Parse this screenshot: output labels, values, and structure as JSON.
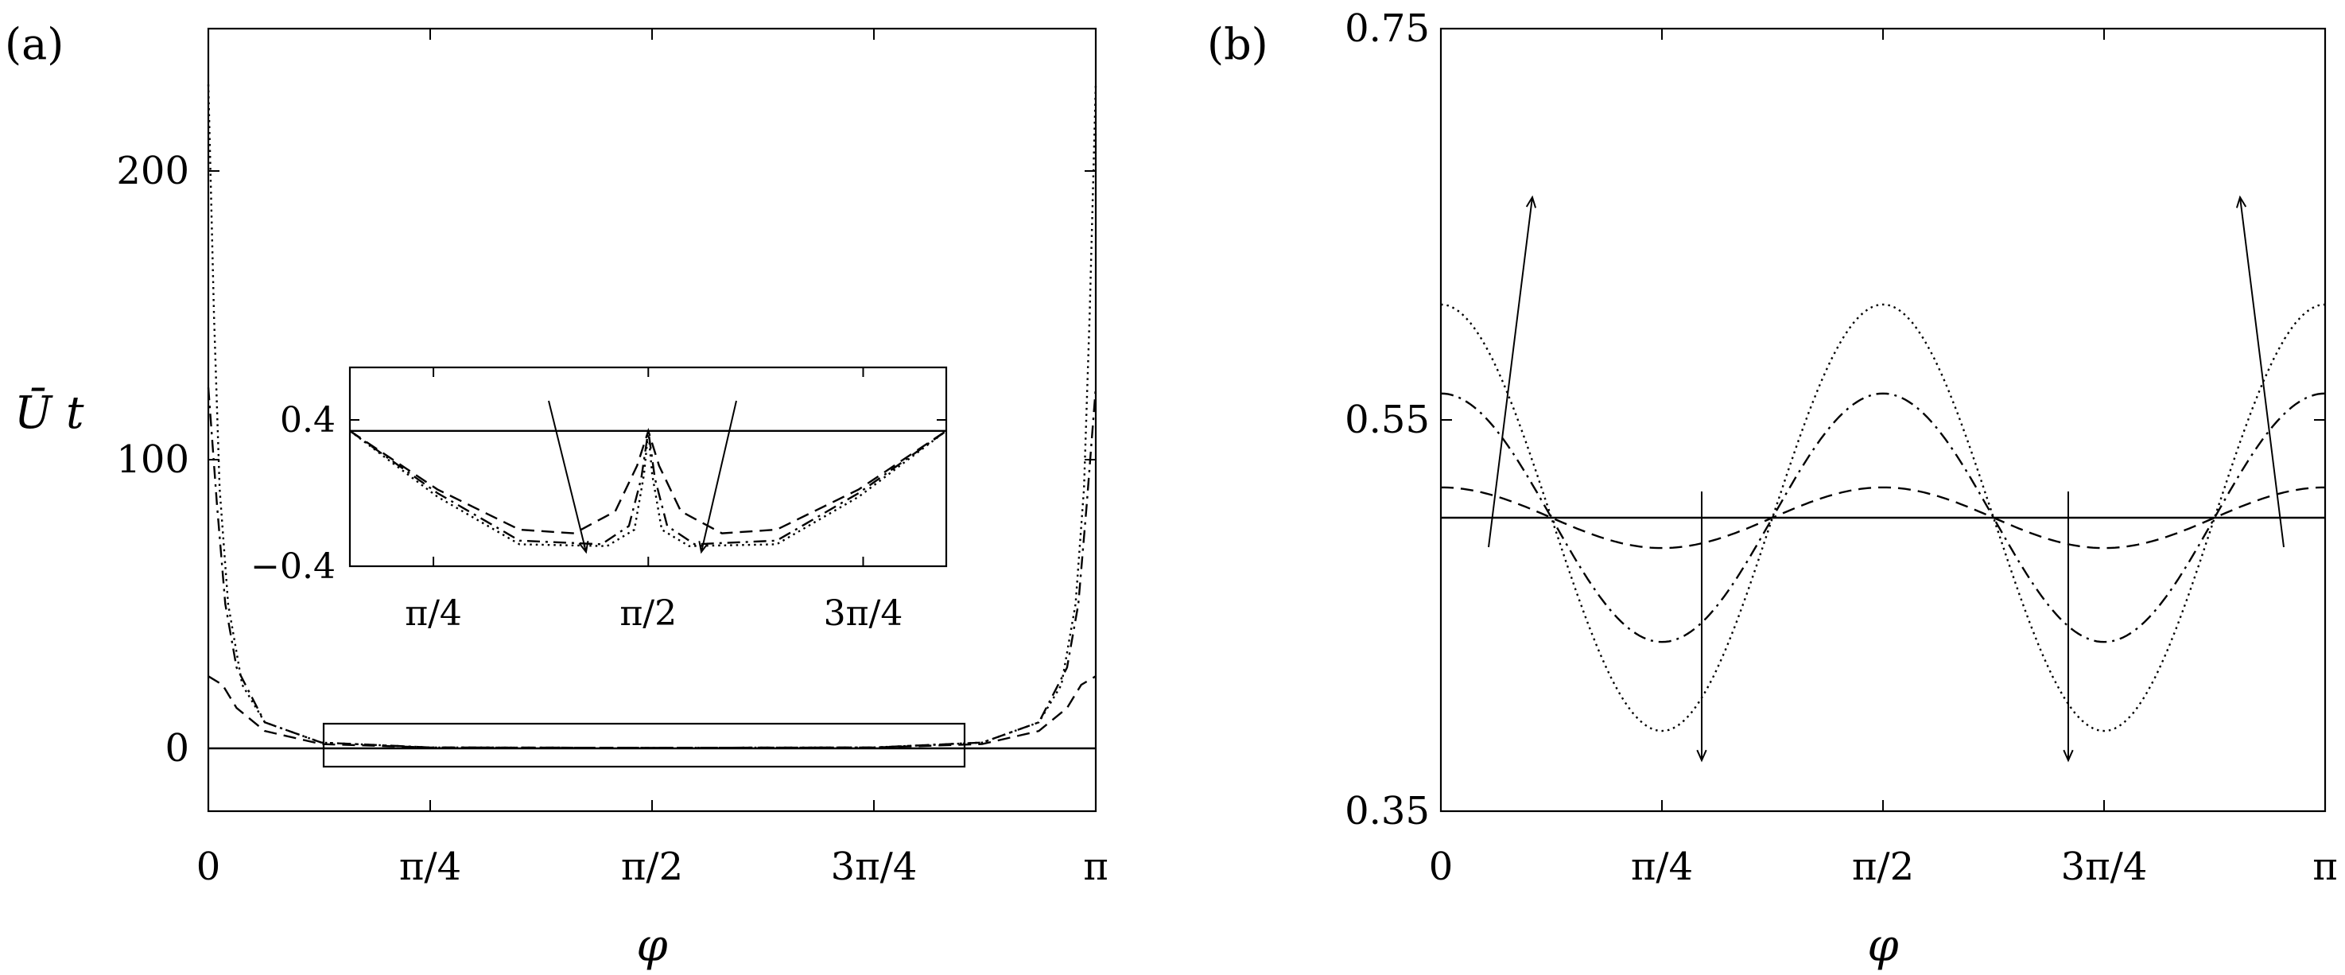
{
  "chart_data": [
    {
      "panel_label": "(a)",
      "type": "line",
      "xlabel": "φ",
      "ylabel": "Ū t",
      "xlim": [
        0,
        3.14159
      ],
      "ylim": [
        -20,
        250
      ],
      "xticks": [
        "0",
        "π/4",
        "π/2",
        "3π/4",
        "π"
      ],
      "yticks": [
        "0",
        "100",
        "200"
      ],
      "series": [
        {
          "style": "solid",
          "x": [
            0,
            0.7854,
            1.5708,
            2.3562,
            3.14159
          ],
          "values": [
            0,
            0,
            0,
            0,
            0
          ]
        },
        {
          "style": "dashed",
          "x": [
            0,
            0.05,
            0.1,
            0.2,
            0.4,
            0.7854,
            1.5708,
            2.3562,
            2.74,
            2.94,
            3.04,
            3.09,
            3.14159
          ],
          "values": [
            25,
            22,
            14,
            6,
            1.5,
            0.3,
            0.2,
            0.3,
            1.5,
            6,
            14,
            22,
            25
          ]
        },
        {
          "style": "dashdot",
          "x": [
            0,
            0.03,
            0.06,
            0.1,
            0.2,
            0.4,
            0.7854,
            1.5708,
            2.3562,
            2.74,
            2.94,
            3.04,
            3.08,
            3.11,
            3.14159
          ],
          "values": [
            125,
            85,
            50,
            28,
            9,
            2,
            0.3,
            0.2,
            0.3,
            2,
            9,
            28,
            50,
            85,
            125
          ]
        },
        {
          "style": "dotted",
          "x": [
            0,
            0.02,
            0.04,
            0.07,
            0.12,
            0.2,
            0.4,
            0.7854,
            1.5708,
            2.3562,
            2.74,
            2.94,
            3.02,
            3.07,
            3.1,
            3.12,
            3.14159
          ],
          "values": [
            230,
            150,
            90,
            50,
            22,
            9,
            2,
            0.3,
            0.2,
            0.3,
            2,
            9,
            22,
            50,
            90,
            150,
            230
          ]
        }
      ],
      "inset": {
        "xlim": [
          0.48,
          2.66
        ],
        "ylim": [
          -0.4,
          0.6
        ],
        "xticks": [
          "π/4",
          "π/2",
          "3π/4"
        ],
        "yticks": [
          "−0.4",
          "0.4"
        ],
        "series": [
          {
            "style": "solid",
            "x": [
              0.48,
              2.66
            ],
            "values": [
              0.34,
              0.34
            ]
          },
          {
            "style": "dashed",
            "x": [
              0.48,
              0.8,
              1.1,
              1.3,
              1.45,
              1.53,
              1.5708,
              1.61,
              1.69,
              1.84,
              2.04,
              2.34,
              2.66
            ],
            "values": [
              0.34,
              0.02,
              -0.2,
              -0.22,
              -0.1,
              0.15,
              0.34,
              0.15,
              -0.1,
              -0.22,
              -0.2,
              0.02,
              0.34
            ]
          },
          {
            "style": "dashdot",
            "x": [
              0.48,
              0.8,
              1.1,
              1.4,
              1.5,
              1.545,
              1.5708,
              1.595,
              1.64,
              1.74,
              2.04,
              2.34,
              2.66
            ],
            "values": [
              0.34,
              0.0,
              -0.26,
              -0.28,
              -0.18,
              0.08,
              0.34,
              0.08,
              -0.18,
              -0.28,
              -0.26,
              0.0,
              0.34
            ]
          },
          {
            "style": "dotted",
            "x": [
              0.48,
              0.8,
              1.1,
              1.42,
              1.52,
              1.555,
              1.5708,
              1.585,
              1.62,
              1.72,
              2.04,
              2.34,
              2.66
            ],
            "values": [
              0.34,
              -0.02,
              -0.28,
              -0.29,
              -0.2,
              0.1,
              0.34,
              0.1,
              -0.2,
              -0.29,
              -0.28,
              -0.02,
              0.34
            ]
          }
        ]
      }
    },
    {
      "panel_label": "(b)",
      "type": "line",
      "xlabel": "φ",
      "ylabel": "",
      "xlim": [
        0,
        3.14159
      ],
      "ylim": [
        0.35,
        0.75
      ],
      "xticks": [
        "0",
        "π/4",
        "π/2",
        "3π/4",
        "π"
      ],
      "yticks": [
        "0.35",
        "0.55",
        "0.75"
      ],
      "series": [
        {
          "style": "solid",
          "formula": "mean",
          "mean": 0.5,
          "amp": 0.0
        },
        {
          "style": "dashed",
          "formula": "mean + amp*cos(4φ)",
          "mean": 0.5,
          "amp": 0.0155
        },
        {
          "style": "dashdot",
          "formula": "mean + amp*cos(4φ)",
          "mean": 0.5,
          "amp": 0.0635
        },
        {
          "style": "dotted",
          "formula": "mean + amp*cos(4φ)",
          "mean": 0.5,
          "amp": 0.109
        }
      ]
    }
  ]
}
